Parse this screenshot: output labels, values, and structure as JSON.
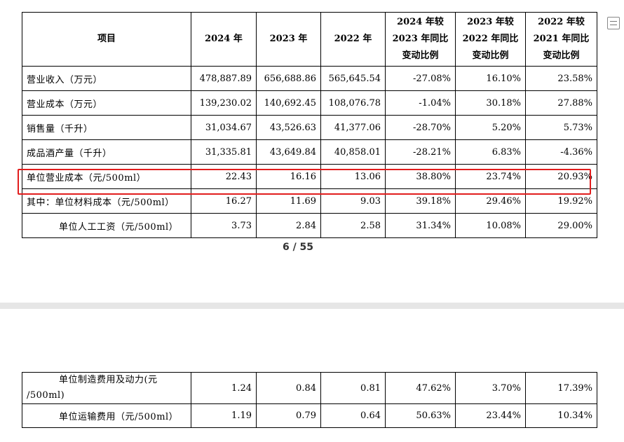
{
  "page_number": "6 / 55",
  "headers": [
    "项目",
    "2024 年",
    "2023 年",
    "2022 年",
    [
      "2024 年较",
      "2023 年同比",
      "变动比例"
    ],
    [
      "2023 年较",
      "2022 年同比",
      "变动比例"
    ],
    [
      "2022 年较",
      "2021 年同比",
      "变动比例"
    ]
  ],
  "rows_page1": [
    {
      "label": "营业收入（万元）",
      "v2024": "478,887.89",
      "v2023": "656,688.86",
      "v2022": "565,645.54",
      "c24": "-27.08%",
      "c23": "16.10%",
      "c22": "23.58%"
    },
    {
      "label": "营业成本（万元）",
      "v2024": "139,230.02",
      "v2023": "140,692.45",
      "v2022": "108,076.78",
      "c24": "-1.04%",
      "c23": "30.18%",
      "c22": "27.88%"
    },
    {
      "label": "销售量（千升）",
      "v2024": "31,034.67",
      "v2023": "43,526.63",
      "v2022": "41,377.06",
      "c24": "-28.70%",
      "c23": "5.20%",
      "c22": "5.73%"
    },
    {
      "label": "成品酒产量（千升）",
      "v2024": "31,335.81",
      "v2023": "43,649.84",
      "v2022": "40,858.01",
      "c24": "-28.21%",
      "c23": "6.83%",
      "c22": "-4.36%"
    },
    {
      "label": "单位营业成本（元/500ml）",
      "v2024": "22.43",
      "v2023": "16.16",
      "v2022": "13.06",
      "c24": "38.80%",
      "c23": "23.74%",
      "c22": "20.93%"
    },
    {
      "label": "其中：单位材料成本（元/500ml）",
      "v2024": "16.27",
      "v2023": "11.69",
      "v2022": "9.03",
      "c24": "39.18%",
      "c23": "29.46%",
      "c22": "19.92%"
    },
    {
      "label": "单位人工工资（元/500ml）",
      "v2024": "3.73",
      "v2023": "2.84",
      "v2022": "2.58",
      "c24": "31.34%",
      "c23": "10.08%",
      "c22": "29.00%"
    }
  ],
  "rows_page2": [
    {
      "label_line1": "单位制造费用及动力(元",
      "label_line2": "/500ml)",
      "v2024": "1.24",
      "v2023": "0.84",
      "v2022": "0.81",
      "c24": "47.62%",
      "c23": "3.70%",
      "c22": "17.39%"
    },
    {
      "label": "单位运输费用（元/500ml）",
      "v2024": "1.19",
      "v2023": "0.79",
      "v2022": "0.64",
      "c24": "50.63%",
      "c23": "23.44%",
      "c22": "10.34%"
    }
  ],
  "highlight_color": "#e21d1d"
}
